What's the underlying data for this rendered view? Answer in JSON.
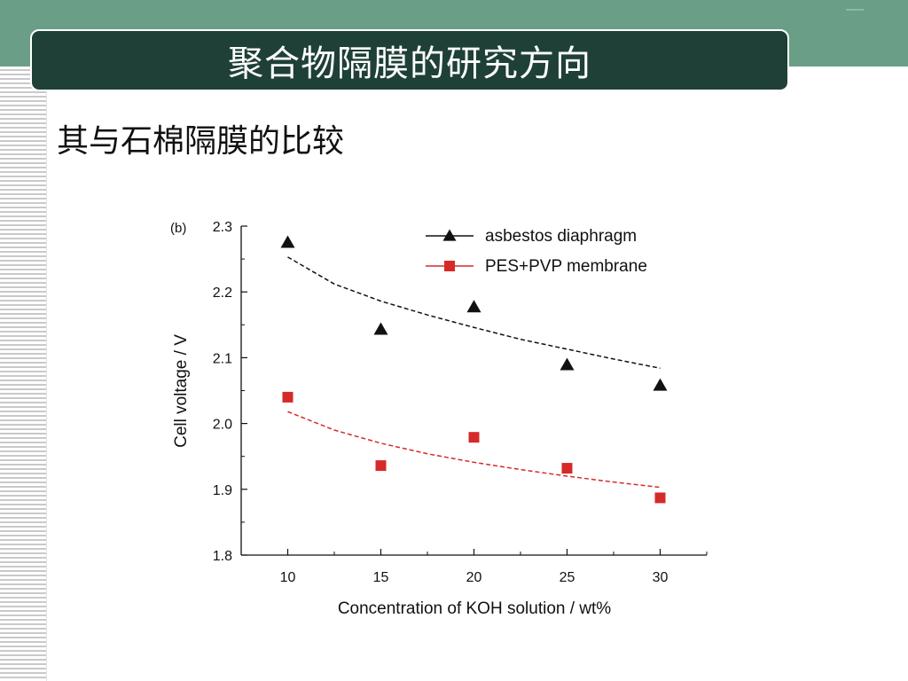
{
  "slide": {
    "title": "聚合物隔膜的研究方向",
    "subtitle": "其与石棉隔膜的比较"
  },
  "colors": {
    "top_band": "#6b9e86",
    "title_bar": "#1e4037",
    "series_asbestos": "#111111",
    "series_pes": "#d62a2a"
  },
  "chart_data": {
    "type": "scatter",
    "panel_label": "(b)",
    "xlabel": "Concentration of KOH solution  /  wt%",
    "ylabel": "Cell voltage  / V",
    "xlim": [
      7.5,
      32.5
    ],
    "ylim": [
      1.8,
      2.3
    ],
    "x_ticks": [
      10,
      15,
      20,
      25,
      30
    ],
    "y_ticks": [
      1.8,
      1.9,
      2.0,
      2.1,
      2.2,
      2.3
    ],
    "legend_position": "top-right",
    "series": [
      {
        "name": "asbestos diaphragm",
        "marker": "triangle",
        "color": "#111111",
        "x": [
          10,
          15,
          20,
          25,
          30
        ],
        "y": [
          2.275,
          2.143,
          2.177,
          2.089,
          2.058
        ],
        "fit_x": [
          10,
          12.5,
          15,
          17.5,
          20,
          22.5,
          25,
          27.5,
          30
        ],
        "fit_y": [
          2.253,
          2.212,
          2.186,
          2.165,
          2.146,
          2.128,
          2.113,
          2.098,
          2.084
        ]
      },
      {
        "name": "PES+PVP membrane",
        "marker": "square",
        "color": "#d62a2a",
        "x": [
          10,
          15,
          20,
          25,
          30
        ],
        "y": [
          2.04,
          1.936,
          1.979,
          1.932,
          1.887
        ],
        "fit_x": [
          10,
          12.5,
          15,
          17.5,
          20,
          22.5,
          25,
          27.5,
          30
        ],
        "fit_y": [
          2.018,
          1.99,
          1.97,
          1.954,
          1.941,
          1.93,
          1.92,
          1.911,
          1.903
        ]
      }
    ]
  }
}
